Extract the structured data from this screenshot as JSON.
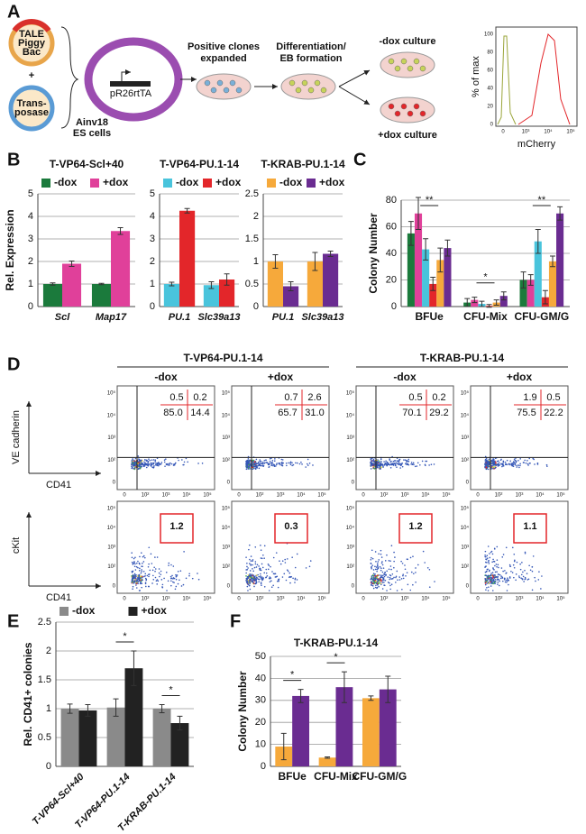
{
  "panel_labels": [
    "A",
    "B",
    "C",
    "D",
    "E",
    "F"
  ],
  "schematic": {
    "plasmid1": [
      "TALE",
      "Piggy",
      "Bac"
    ],
    "plus": "+",
    "plasmid2": [
      "Trans-",
      "posase"
    ],
    "cell_line": [
      "Ainv18",
      "ES cells"
    ],
    "construct": "pR26rtTA",
    "step1": [
      "Positive clones",
      "expanded"
    ],
    "step2": [
      "Differentiation/",
      "EB formation"
    ],
    "minus_dox": "-dox culture",
    "plus_dox": "+dox culture",
    "hist_ylabel": "% of max",
    "hist_xlabel": "mCherry",
    "hist_yticks": [
      "100",
      "80",
      "60",
      "40",
      "20",
      "0"
    ],
    "hist_xticks": [
      "0",
      "10³",
      "10⁴",
      "10⁵"
    ]
  },
  "chart_data": [
    {
      "type": "bar",
      "title": "T-VP64-Scl+40",
      "y_label": "Rel. Expression",
      "categories": [
        "Scl",
        "Map17"
      ],
      "series": [
        {
          "name": "-dox",
          "color": "#1b7a3c",
          "values": [
            1.0,
            1.0
          ],
          "errors": [
            0.05,
            0.03
          ]
        },
        {
          "name": "+dox",
          "color": "#e0409a",
          "values": [
            1.9,
            3.35
          ],
          "errors": [
            0.12,
            0.15
          ]
        }
      ],
      "ylim": [
        0,
        5
      ],
      "yticks": [
        0,
        1,
        2,
        3,
        4,
        5
      ],
      "grid": true
    },
    {
      "type": "bar",
      "title": "T-VP64-PU.1-14",
      "categories": [
        "PU.1",
        "Slc39a13"
      ],
      "series": [
        {
          "name": "-dox",
          "color": "#49c4dc",
          "values": [
            1.0,
            0.95
          ],
          "errors": [
            0.08,
            0.15
          ]
        },
        {
          "name": "+dox",
          "color": "#e3262a",
          "values": [
            4.25,
            1.2
          ],
          "errors": [
            0.1,
            0.25
          ]
        }
      ],
      "ylim": [
        0,
        5
      ],
      "yticks": [
        0,
        1,
        2,
        3,
        4,
        5
      ],
      "grid": true
    },
    {
      "type": "bar",
      "title": "T-KRAB-PU.1-14",
      "categories": [
        "PU.1",
        "Slc39a13"
      ],
      "series": [
        {
          "name": "-dox",
          "color": "#f6a93b",
          "values": [
            1.0,
            1.0
          ],
          "errors": [
            0.15,
            0.2
          ]
        },
        {
          "name": "+dox",
          "color": "#6a2c91",
          "values": [
            0.45,
            1.17
          ],
          "errors": [
            0.1,
            0.06
          ]
        }
      ],
      "ylim": [
        0,
        2.5
      ],
      "yticks": [
        0,
        0.5,
        1,
        1.5,
        2,
        2.5
      ],
      "grid": true
    },
    {
      "type": "bar",
      "y_label": "Colony Number",
      "categories": [
        "BFUe",
        "CFU-Mix",
        "CFU-GM/G"
      ],
      "series": [
        {
          "color": "#1b7a3c",
          "values": [
            55,
            3,
            20
          ],
          "errors": [
            9,
            3,
            6
          ]
        },
        {
          "color": "#e0409a",
          "values": [
            70,
            5,
            20
          ],
          "errors": [
            12,
            2,
            4
          ]
        },
        {
          "color": "#49c4dc",
          "values": [
            43,
            2,
            49
          ],
          "errors": [
            8,
            2,
            9
          ]
        },
        {
          "color": "#e3262a",
          "values": [
            17,
            0.5,
            7
          ],
          "errors": [
            5,
            1,
            5
          ]
        },
        {
          "color": "#f6a93b",
          "values": [
            35,
            3,
            34
          ],
          "errors": [
            9,
            2,
            4
          ]
        },
        {
          "color": "#6a2c91",
          "values": [
            44,
            8,
            70
          ],
          "errors": [
            6,
            3,
            5
          ]
        }
      ],
      "ylim": [
        0,
        80
      ],
      "yticks": [
        0,
        20,
        40,
        60,
        80
      ],
      "grid": true,
      "annotations": [
        "**",
        "*",
        "**"
      ]
    },
    {
      "type": "bar",
      "y_label": "Rel. CD41+ colonies",
      "categories": [
        "T-VP64-Scl+40",
        "T-VP64-PU.1-14",
        "T-KRAB-PU.1-14"
      ],
      "series": [
        {
          "name": "-dox",
          "color": "#8a8a8a",
          "values": [
            1.0,
            1.02,
            1.0
          ],
          "errors": [
            0.08,
            0.15,
            0.07
          ]
        },
        {
          "name": "+dox",
          "color": "#222222",
          "values": [
            0.97,
            1.7,
            0.75
          ],
          "errors": [
            0.1,
            0.3,
            0.12
          ]
        }
      ],
      "ylim": [
        0,
        2.5
      ],
      "yticks": [
        0,
        0.5,
        1,
        1.5,
        2,
        2.5
      ],
      "grid": true,
      "xtick_rotation": -45,
      "annotations": [
        "*",
        "*"
      ]
    },
    {
      "type": "bar",
      "title": "T-KRAB-PU.1-14",
      "y_label": "Colony Number",
      "categories": [
        "BFUe",
        "CFU-Mix",
        "CFU-GM/G"
      ],
      "series": [
        {
          "color": "#f6a93b",
          "values": [
            9,
            4,
            31
          ],
          "errors": [
            6,
            0.3,
            1
          ]
        },
        {
          "color": "#6a2c91",
          "values": [
            32,
            36,
            35
          ],
          "errors": [
            3,
            7,
            6
          ]
        }
      ],
      "ylim": [
        0,
        50
      ],
      "yticks": [
        0,
        10,
        20,
        30,
        40,
        50
      ],
      "grid": true,
      "annotations": [
        "*",
        "*"
      ]
    }
  ],
  "flow": {
    "groups": [
      {
        "title": "T-VP64-PU.1-14",
        "conditions": [
          "-dox",
          "+dox"
        ]
      },
      {
        "title": "T-KRAB-PU.1-14",
        "conditions": [
          "-dox",
          "+dox"
        ]
      }
    ],
    "y_label_top": "VE cadherin",
    "x_label_top": "CD41",
    "y_label_bottom": "cKit",
    "x_label_bottom": "CD41",
    "top": [
      [
        "0.5",
        "0.2",
        "85.0",
        "14.4"
      ],
      [
        "0.7",
        "2.6",
        "65.7",
        "31.0"
      ],
      [
        "0.5",
        "0.2",
        "70.1",
        "29.2"
      ],
      [
        "1.9",
        "0.5",
        "75.5",
        "22.2"
      ]
    ],
    "bottom": [
      "1.2",
      "0.3",
      "1.2",
      "1.1"
    ],
    "axis_ticks": [
      "0",
      "10²",
      "10³",
      "10⁴",
      "10⁵"
    ]
  }
}
